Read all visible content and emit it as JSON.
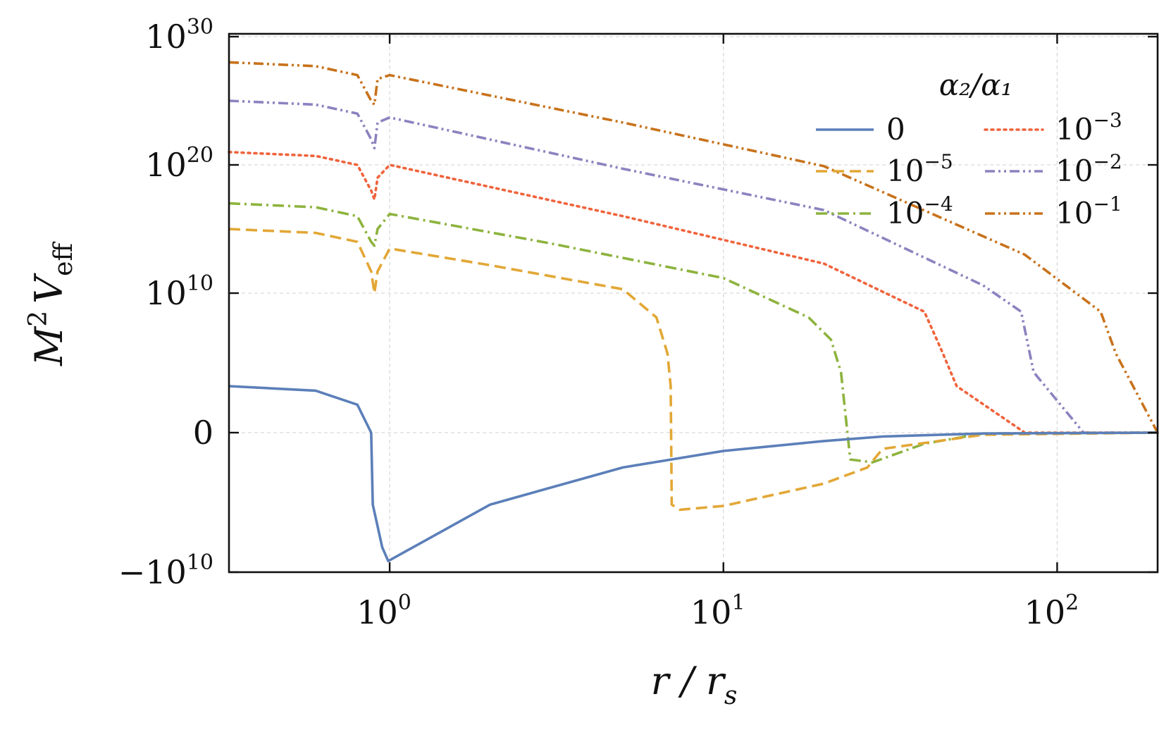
{
  "chart_data": {
    "type": "line",
    "xlabel": "r / r_s",
    "ylabel": "M^2 V_eff",
    "x_scale": "log",
    "y_scale": "symlog",
    "xlim": [
      0.33,
      200
    ],
    "ylim": [
      "-1e10",
      "1e30"
    ],
    "grid": true,
    "x_ticks": [
      {
        "value": 1,
        "base": "10",
        "exp": "0"
      },
      {
        "value": 10,
        "base": "10",
        "exp": "1"
      },
      {
        "value": 100,
        "base": "10",
        "exp": "2"
      }
    ],
    "y_ticks": [
      {
        "value": -10000000000.0,
        "base": "−10",
        "exp": "10"
      },
      {
        "value": 0,
        "base": "0",
        "exp": ""
      },
      {
        "value": 10000000000.0,
        "base": "10",
        "exp": "10"
      },
      {
        "value": 1e+20,
        "base": "10",
        "exp": "20"
      },
      {
        "value": 1e+30,
        "base": "10",
        "exp": "30"
      }
    ],
    "legend": {
      "title": "α₂/α₁",
      "placement": "top-right",
      "columns": 2
    },
    "series": [
      {
        "name": "0",
        "color": "#5b7fb9",
        "style": "solid",
        "points": [
          [
            0.33,
            100000000.0
          ],
          [
            0.6,
            80000000.0
          ],
          [
            0.8,
            40000000.0
          ],
          [
            0.88,
            10000000.0
          ],
          [
            0.89,
            -3000000000.0
          ],
          [
            0.95,
            -7000000000.0
          ],
          [
            0.99,
            -8600000000.0
          ],
          [
            2,
            -3000000000.0
          ],
          [
            5,
            -800000000.0
          ],
          [
            10,
            -250000000.0
          ],
          [
            20,
            -60000000.0
          ],
          [
            30,
            -15000000.0
          ],
          [
            60,
            -1000000.0
          ],
          [
            200,
            0
          ]
        ]
      },
      {
        "name": "10⁻⁵",
        "color": "#e2a735",
        "style": "dashed",
        "points": [
          [
            0.33,
            1000000000000000.0
          ],
          [
            0.6,
            500000000000000.0
          ],
          [
            0.8,
            100000000000000.0
          ],
          [
            0.88,
            500000000000.0
          ],
          [
            0.9,
            10000000000.0
          ],
          [
            0.92,
            500000000000.0
          ],
          [
            1.0,
            30000000000000.0
          ],
          [
            2,
            1500000000000.0
          ],
          [
            5,
            20000000000.0
          ],
          [
            6.3,
            3000000000.0
          ],
          [
            6.8,
            500000000.0
          ],
          [
            6.95,
            100000000.0
          ],
          [
            7.0,
            -3000000000.0
          ],
          [
            7.4,
            -3400000000.0
          ],
          [
            10,
            -3100000000.0
          ],
          [
            20,
            -1600000000.0
          ],
          [
            27,
            -800000000.0
          ],
          [
            30,
            -200000000.0
          ],
          [
            60,
            -5000000.0
          ],
          [
            200,
            0
          ]
        ]
      },
      {
        "name": "10⁻⁴",
        "color": "#8db33d",
        "style": "dashdot",
        "points": [
          [
            0.33,
            1e+17
          ],
          [
            0.6,
            5e+16
          ],
          [
            0.8,
            1e+16
          ],
          [
            0.88,
            100000000000000.0
          ],
          [
            0.9,
            50000000000000.0
          ],
          [
            0.92,
            1000000000000000.0
          ],
          [
            1.0,
            1.5e+16
          ],
          [
            3,
            80000000000000.0
          ],
          [
            10,
            150000000000.0
          ],
          [
            18,
            3000000000.0
          ],
          [
            21,
            1000000000.0
          ],
          [
            22.5,
            200000000.0
          ],
          [
            24,
            -500000000.0
          ],
          [
            28,
            -600000000.0
          ],
          [
            40,
            -100000000.0
          ],
          [
            60,
            -1000000.0
          ],
          [
            200,
            0
          ]
        ]
      },
      {
        "name": "10⁻³",
        "color": "#f0633c",
        "style": "dotted",
        "points": [
          [
            0.33,
            1e+21
          ],
          [
            0.6,
            5e+20
          ],
          [
            0.8,
            1e+20
          ],
          [
            0.88,
            1e+18
          ],
          [
            0.9,
            2e+17
          ],
          [
            0.92,
            1e+19
          ],
          [
            1.0,
            1e+20
          ],
          [
            5,
            1e+16
          ],
          [
            20,
            2000000000000.0
          ],
          [
            40,
            4000000000.0
          ],
          [
            45,
            600000000.0
          ],
          [
            50,
            100000000.0
          ],
          [
            80,
            10000000.0
          ],
          [
            200,
            0
          ]
        ]
      },
      {
        "name": "10⁻²",
        "color": "#8b83bf",
        "style": "dashdotdot",
        "points": [
          [
            0.33,
            1e+25
          ],
          [
            0.6,
            5e+24
          ],
          [
            0.8,
            1e+24
          ],
          [
            0.88,
            1e+22
          ],
          [
            0.9,
            2e+21
          ],
          [
            0.92,
            2e+23
          ],
          [
            1.0,
            5e+23
          ],
          [
            5,
            5e+19
          ],
          [
            20,
            3e+16
          ],
          [
            60,
            40000000000.0
          ],
          [
            78,
            4000000000.0
          ],
          [
            85,
            200000000.0
          ],
          [
            120,
            10000000.0
          ],
          [
            200,
            0
          ]
        ]
      },
      {
        "name": "10⁻¹",
        "color": "#c8721b",
        "style": "dashdotdot",
        "points": [
          [
            0.33,
            1e+28
          ],
          [
            0.6,
            5e+27
          ],
          [
            0.8,
            1e+27
          ],
          [
            0.88,
            1e+25
          ],
          [
            0.9,
            5e+24
          ],
          [
            0.92,
            5e+26
          ],
          [
            1.0,
            1e+27
          ],
          [
            5,
            2e+23
          ],
          [
            20,
            8e+19
          ],
          [
            80,
            10000000000000.0
          ],
          [
            135,
            4000000000.0
          ],
          [
            150,
            500000000.0
          ],
          [
            200,
            0
          ]
        ]
      }
    ]
  }
}
